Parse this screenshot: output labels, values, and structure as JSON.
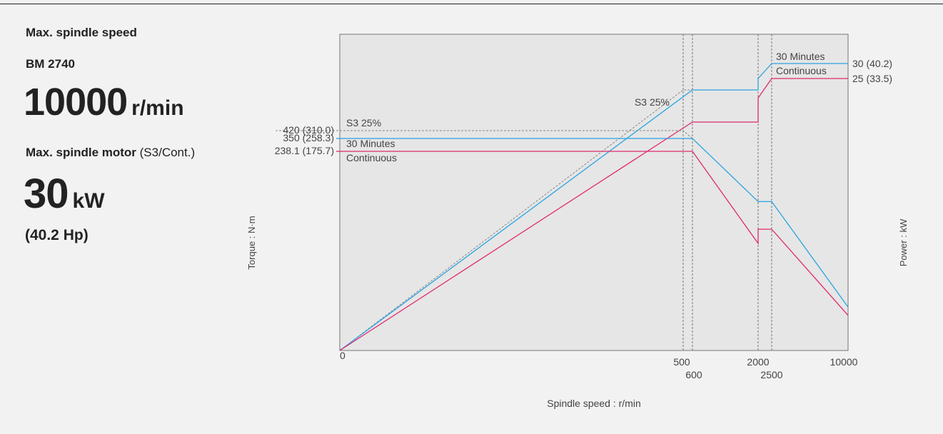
{
  "spec": {
    "speed_label": "Max. spindle speed",
    "model": "BM 2740",
    "speed_value": "10000",
    "speed_unit": "r/min",
    "motor_label_bold": "Max. spindle motor",
    "motor_label_rest": " (S3/Cont.)",
    "motor_value": "30",
    "motor_unit": "kW",
    "motor_hp": "(40.2 Hp)"
  },
  "colors": {
    "s3": "#888888",
    "thirty_min": "#2aa4e0",
    "continuous": "#e0286e",
    "plot_bg": "#e6e6e6"
  },
  "chart_data": {
    "type": "line",
    "xlabel": "Spindle speed : r/min",
    "ylabel_left": "Torque : N·m",
    "ylabel_right": "Power : kW",
    "x_ticks": [
      {
        "value": 0,
        "label": "0"
      },
      {
        "value": 500,
        "label": "500"
      },
      {
        "value": 600,
        "label": "600"
      },
      {
        "value": 2000,
        "label": "2000"
      },
      {
        "value": 2500,
        "label": "2500"
      },
      {
        "value": 10000,
        "label": "10000"
      }
    ],
    "torque_ticks": [
      {
        "value": 420,
        "label": "420 (310.0)"
      },
      {
        "value": 350,
        "label": "350 (258.3)"
      },
      {
        "value": 238.1,
        "label": "238.1 (175.7)"
      }
    ],
    "power_ticks": [
      {
        "value": 30,
        "label": "30 (40.2)"
      },
      {
        "value": 25,
        "label": "25 (33.5)"
      }
    ],
    "torque_series": [
      {
        "name": "S3 25%",
        "style": "s3",
        "points": [
          [
            0,
            420
          ],
          [
            500,
            420
          ],
          [
            600,
            350
          ]
        ]
      },
      {
        "name": "30 Minutes",
        "style": "thirty_min",
        "points": [
          [
            0,
            350
          ],
          [
            600,
            350
          ],
          [
            2000,
            178
          ],
          [
            2500,
            178
          ],
          [
            10000,
            52
          ]
        ]
      },
      {
        "name": "Continuous",
        "style": "continuous",
        "points": [
          [
            0,
            238.1
          ],
          [
            600,
            238.1
          ],
          [
            2000,
            128
          ],
          [
            2000,
            145
          ],
          [
            2500,
            145
          ],
          [
            10000,
            42
          ]
        ]
      }
    ],
    "power_series": [
      {
        "name": "S3 25%",
        "style": "s3",
        "points": [
          [
            0,
            0
          ],
          [
            500,
            22
          ],
          [
            600,
            22
          ]
        ]
      },
      {
        "name": "30 Minutes",
        "style": "thirty_min",
        "points": [
          [
            0,
            0
          ],
          [
            600,
            22
          ],
          [
            2000,
            22
          ],
          [
            2000,
            25
          ],
          [
            2500,
            30
          ],
          [
            10000,
            30
          ]
        ]
      },
      {
        "name": "Continuous",
        "style": "continuous",
        "points": [
          [
            0,
            0
          ],
          [
            600,
            18
          ],
          [
            2000,
            18
          ],
          [
            2000,
            21
          ],
          [
            2500,
            25
          ],
          [
            10000,
            25
          ]
        ]
      }
    ],
    "annotations": {
      "torque_s3": "S3 25%",
      "torque_30min": "30 Minutes",
      "torque_cont": "Continuous",
      "power_s3": "S3 25%",
      "power_30min": "30 Minutes",
      "power_cont": "Continuous"
    }
  }
}
